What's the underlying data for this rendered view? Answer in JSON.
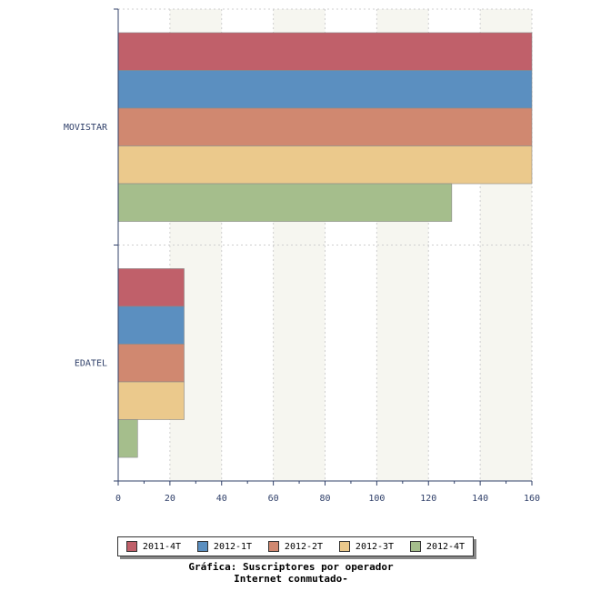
{
  "chart_data": {
    "type": "bar",
    "orientation": "horizontal",
    "categories": [
      "MOVISTAR",
      "EDATEL"
    ],
    "series": [
      {
        "name": "2011-4T",
        "color": "#c0606a",
        "values": [
          160,
          25.5
        ]
      },
      {
        "name": "2012-1T",
        "color": "#5b8fc0",
        "values": [
          160,
          25.5
        ]
      },
      {
        "name": "2012-2T",
        "color": "#d08870",
        "values": [
          160,
          25.5
        ]
      },
      {
        "name": "2012-3T",
        "color": "#ebc98c",
        "values": [
          160,
          25.5
        ]
      },
      {
        "name": "2012-4T",
        "color": "#a5be8c",
        "values": [
          129,
          7.5
        ]
      }
    ],
    "xlim": [
      0,
      160
    ],
    "xticks": [
      0,
      20,
      40,
      60,
      80,
      100,
      120,
      140,
      160
    ],
    "grid": true,
    "legend_position": "bottom",
    "title": "Gráfica: Suscriptores por operador",
    "subtitle": "Internet conmutado-"
  }
}
